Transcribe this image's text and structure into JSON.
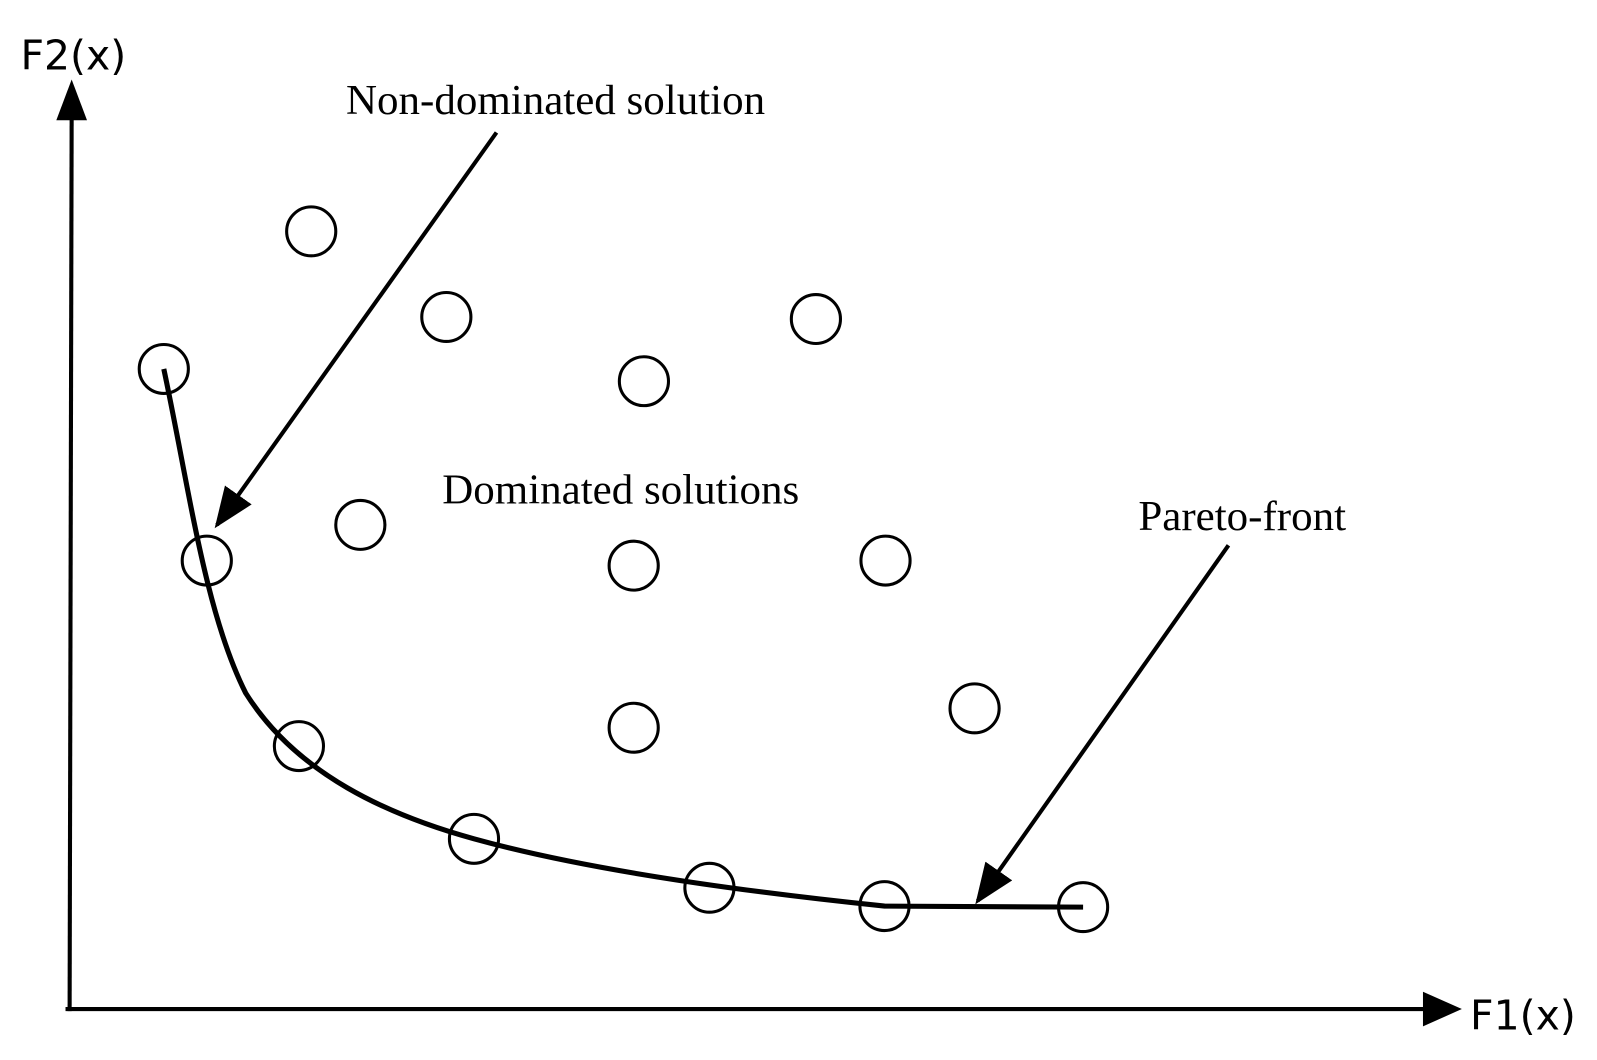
{
  "axes": {
    "y_label": "F2(x)",
    "x_label": "F1(x)"
  },
  "annotations": {
    "non_dominated": "Non-dominated solution",
    "dominated": "Dominated solutions",
    "pareto_front": "Pareto-front"
  }
}
